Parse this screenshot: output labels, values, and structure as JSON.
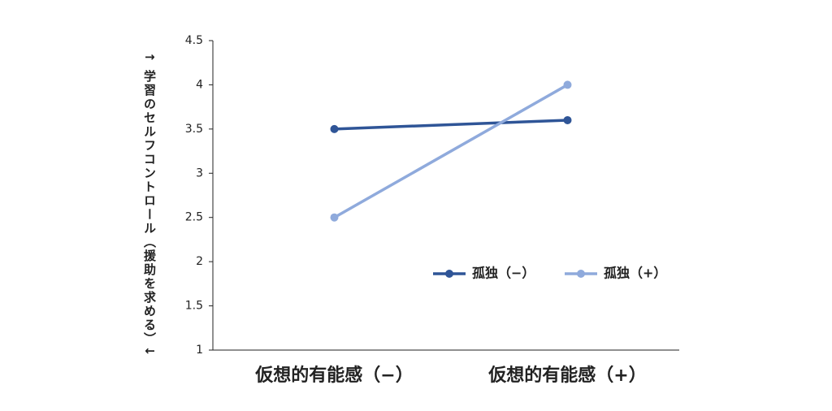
{
  "chart_data": {
    "type": "line",
    "y_label": "↑ 学習のセルフコントロール（援助を求める）↓",
    "categories": [
      "仮想的有能感（−）",
      "仮想的有能感（+）"
    ],
    "series": [
      {
        "name": "孤独（−）",
        "color": "#2f5597",
        "values": [
          3.5,
          3.6
        ]
      },
      {
        "name": "孤独（+）",
        "color": "#8faadc",
        "values": [
          2.5,
          4.0
        ]
      }
    ],
    "ylim": [
      1,
      4.5
    ],
    "yticks": [
      1,
      1.5,
      2,
      2.5,
      3,
      3.5,
      4,
      4.5
    ],
    "grid": false
  }
}
